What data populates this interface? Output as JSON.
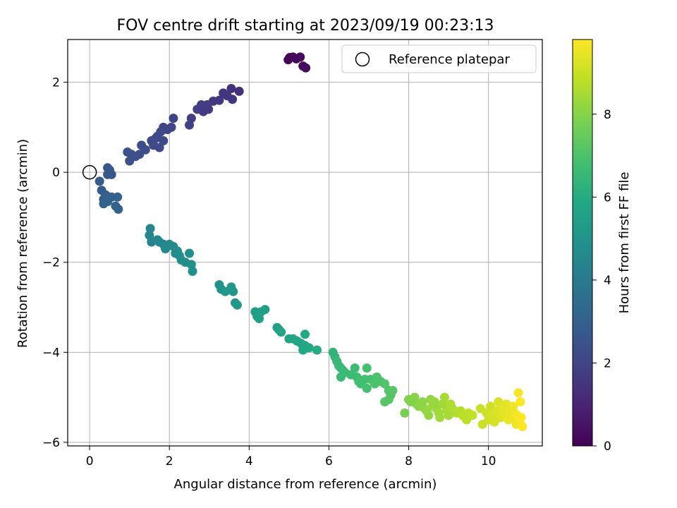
{
  "chart_data": {
    "type": "scatter",
    "title": "FOV centre drift starting at 2023/09/19 00:23:13",
    "xlabel": "Angular distance from reference (arcmin)",
    "ylabel": "Rotation from reference (arcmin)",
    "xlim": [
      -0.55,
      11.35
    ],
    "ylim": [
      -6.08,
      2.95
    ],
    "xticks": [
      0,
      2,
      4,
      6,
      8,
      10
    ],
    "xtick_labels": [
      "0",
      "2",
      "4",
      "6",
      "8",
      "10"
    ],
    "yticks": [
      2,
      0,
      -2,
      -4,
      -6
    ],
    "ytick_labels": [
      "2",
      "0",
      "−2",
      "−4",
      "−6"
    ],
    "grid": true,
    "colormap": "viridis",
    "colorbar": {
      "label": "Hours from first FF file",
      "range": [
        0,
        9.8
      ],
      "ticks": [
        0,
        2,
        4,
        6,
        8
      ],
      "tick_labels": [
        "0",
        "2",
        "4",
        "6",
        "8"
      ]
    },
    "legend": {
      "position": "upper right",
      "entries": [
        "Reference platepar"
      ]
    },
    "reference_point": {
      "x": 0,
      "y": 0
    },
    "series": [
      {
        "points": [
          {
            "x": 4.98,
            "y": 2.5,
            "c": 0.1
          },
          {
            "x": 5.02,
            "y": 2.55,
            "c": 0.1
          },
          {
            "x": 5.1,
            "y": 2.56,
            "c": 0.2
          },
          {
            "x": 5.18,
            "y": 2.52,
            "c": 0.2
          },
          {
            "x": 5.28,
            "y": 2.56,
            "c": 0.2
          },
          {
            "x": 5.35,
            "y": 2.36,
            "c": 0.3
          },
          {
            "x": 5.42,
            "y": 2.32,
            "c": 0.3
          },
          {
            "x": 3.75,
            "y": 1.8,
            "c": 1.4
          },
          {
            "x": 3.55,
            "y": 1.86,
            "c": 1.4
          },
          {
            "x": 3.58,
            "y": 1.62,
            "c": 1.5
          },
          {
            "x": 3.45,
            "y": 1.7,
            "c": 1.5
          },
          {
            "x": 3.35,
            "y": 1.76,
            "c": 1.5
          },
          {
            "x": 3.25,
            "y": 1.6,
            "c": 1.6
          },
          {
            "x": 3.1,
            "y": 1.58,
            "c": 1.6
          },
          {
            "x": 2.98,
            "y": 1.4,
            "c": 1.7
          },
          {
            "x": 2.95,
            "y": 1.5,
            "c": 1.7
          },
          {
            "x": 2.85,
            "y": 1.35,
            "c": 1.7
          },
          {
            "x": 2.8,
            "y": 1.5,
            "c": 1.8
          },
          {
            "x": 2.7,
            "y": 1.4,
            "c": 1.8
          },
          {
            "x": 2.55,
            "y": 1.2,
            "c": 1.8
          },
          {
            "x": 2.5,
            "y": 1.05,
            "c": 1.9
          },
          {
            "x": 2.1,
            "y": 1.2,
            "c": 1.9
          },
          {
            "x": 2.05,
            "y": 1.0,
            "c": 2.0
          },
          {
            "x": 1.95,
            "y": 0.95,
            "c": 2.0
          },
          {
            "x": 1.85,
            "y": 1.0,
            "c": 2.0
          },
          {
            "x": 1.78,
            "y": 0.9,
            "c": 2.1
          },
          {
            "x": 1.7,
            "y": 0.8,
            "c": 2.1
          },
          {
            "x": 1.85,
            "y": 0.7,
            "c": 2.1
          },
          {
            "x": 1.75,
            "y": 0.55,
            "c": 2.1
          },
          {
            "x": 1.65,
            "y": 0.75,
            "c": 2.2
          },
          {
            "x": 1.55,
            "y": 0.7,
            "c": 2.2
          },
          {
            "x": 1.6,
            "y": 0.6,
            "c": 2.2
          },
          {
            "x": 1.4,
            "y": 0.5,
            "c": 2.3
          },
          {
            "x": 1.3,
            "y": 0.6,
            "c": 2.3
          },
          {
            "x": 1.25,
            "y": 0.4,
            "c": 2.3
          },
          {
            "x": 1.15,
            "y": 0.35,
            "c": 2.4
          },
          {
            "x": 1.05,
            "y": 0.4,
            "c": 2.4
          },
          {
            "x": 1.0,
            "y": 0.25,
            "c": 2.4
          },
          {
            "x": 0.95,
            "y": 0.45,
            "c": 2.5
          },
          {
            "x": 0.5,
            "y": 0.05,
            "c": 2.6
          },
          {
            "x": 0.55,
            "y": -0.05,
            "c": 2.6
          },
          {
            "x": 0.45,
            "y": 0.1,
            "c": 2.7
          },
          {
            "x": 0.45,
            "y": -0.05,
            "c": 2.7
          },
          {
            "x": 0.25,
            "y": -0.2,
            "c": 2.8
          },
          {
            "x": 0.3,
            "y": -0.4,
            "c": 2.8
          },
          {
            "x": 0.4,
            "y": -0.5,
            "c": 2.9
          },
          {
            "x": 0.35,
            "y": -0.6,
            "c": 2.9
          },
          {
            "x": 0.45,
            "y": -0.65,
            "c": 3.0
          },
          {
            "x": 0.55,
            "y": -0.55,
            "c": 3.0
          },
          {
            "x": 0.7,
            "y": -0.55,
            "c": 3.0
          },
          {
            "x": 0.65,
            "y": -0.75,
            "c": 3.1
          },
          {
            "x": 0.72,
            "y": -0.82,
            "c": 3.1
          },
          {
            "x": 0.35,
            "y": -0.7,
            "c": 3.1
          },
          {
            "x": 1.52,
            "y": -1.25,
            "c": 4.4
          },
          {
            "x": 1.5,
            "y": -1.4,
            "c": 4.4
          },
          {
            "x": 1.55,
            "y": -1.55,
            "c": 4.4
          },
          {
            "x": 1.7,
            "y": -1.5,
            "c": 4.5
          },
          {
            "x": 1.75,
            "y": -1.55,
            "c": 4.5
          },
          {
            "x": 1.85,
            "y": -1.6,
            "c": 4.5
          },
          {
            "x": 1.9,
            "y": -1.7,
            "c": 4.6
          },
          {
            "x": 2.0,
            "y": -1.6,
            "c": 4.6
          },
          {
            "x": 2.1,
            "y": -1.65,
            "c": 4.6
          },
          {
            "x": 2.15,
            "y": -1.8,
            "c": 4.7
          },
          {
            "x": 2.2,
            "y": -1.75,
            "c": 4.7
          },
          {
            "x": 2.25,
            "y": -1.85,
            "c": 4.7
          },
          {
            "x": 2.3,
            "y": -1.95,
            "c": 4.8
          },
          {
            "x": 2.4,
            "y": -2.0,
            "c": 4.8
          },
          {
            "x": 2.5,
            "y": -1.8,
            "c": 4.8
          },
          {
            "x": 2.55,
            "y": -2.05,
            "c": 4.9
          },
          {
            "x": 2.58,
            "y": -2.2,
            "c": 4.9
          },
          {
            "x": 3.25,
            "y": -2.5,
            "c": 5.0
          },
          {
            "x": 3.3,
            "y": -2.6,
            "c": 5.0
          },
          {
            "x": 3.4,
            "y": -2.65,
            "c": 5.1
          },
          {
            "x": 3.55,
            "y": -2.55,
            "c": 5.1
          },
          {
            "x": 3.6,
            "y": -2.65,
            "c": 5.1
          },
          {
            "x": 3.65,
            "y": -2.9,
            "c": 5.2
          },
          {
            "x": 3.7,
            "y": -2.95,
            "c": 5.2
          },
          {
            "x": 4.15,
            "y": -3.1,
            "c": 5.4
          },
          {
            "x": 4.2,
            "y": -3.2,
            "c": 5.4
          },
          {
            "x": 4.3,
            "y": -3.1,
            "c": 5.5
          },
          {
            "x": 4.4,
            "y": -3.05,
            "c": 5.5
          },
          {
            "x": 4.25,
            "y": -3.25,
            "c": 5.5
          },
          {
            "x": 4.7,
            "y": -3.45,
            "c": 5.6
          },
          {
            "x": 4.75,
            "y": -3.5,
            "c": 5.6
          },
          {
            "x": 4.8,
            "y": -3.55,
            "c": 5.7
          },
          {
            "x": 5.0,
            "y": -3.7,
            "c": 5.7
          },
          {
            "x": 5.1,
            "y": -3.7,
            "c": 5.7
          },
          {
            "x": 5.2,
            "y": -3.75,
            "c": 5.8
          },
          {
            "x": 5.3,
            "y": -3.8,
            "c": 5.8
          },
          {
            "x": 5.4,
            "y": -3.85,
            "c": 5.8
          },
          {
            "x": 5.35,
            "y": -3.95,
            "c": 5.9
          },
          {
            "x": 5.5,
            "y": -3.9,
            "c": 5.9
          },
          {
            "x": 5.4,
            "y": -3.6,
            "c": 5.9
          },
          {
            "x": 5.7,
            "y": -3.95,
            "c": 6.0
          },
          {
            "x": 6.1,
            "y": -4.0,
            "c": 6.4
          },
          {
            "x": 6.15,
            "y": -4.1,
            "c": 6.4
          },
          {
            "x": 6.2,
            "y": -4.2,
            "c": 6.5
          },
          {
            "x": 6.25,
            "y": -4.3,
            "c": 6.5
          },
          {
            "x": 6.3,
            "y": -4.35,
            "c": 6.5
          },
          {
            "x": 6.35,
            "y": -4.4,
            "c": 6.6
          },
          {
            "x": 6.4,
            "y": -4.45,
            "c": 6.6
          },
          {
            "x": 6.3,
            "y": -4.55,
            "c": 6.6
          },
          {
            "x": 6.55,
            "y": -4.5,
            "c": 6.7
          },
          {
            "x": 6.65,
            "y": -4.35,
            "c": 6.7
          },
          {
            "x": 6.7,
            "y": -4.55,
            "c": 6.7
          },
          {
            "x": 6.75,
            "y": -4.65,
            "c": 6.8
          },
          {
            "x": 6.8,
            "y": -4.7,
            "c": 6.8
          },
          {
            "x": 6.9,
            "y": -4.6,
            "c": 6.8
          },
          {
            "x": 6.95,
            "y": -4.8,
            "c": 6.9
          },
          {
            "x": 6.95,
            "y": -4.35,
            "c": 6.9
          },
          {
            "x": 7.05,
            "y": -4.6,
            "c": 6.9
          },
          {
            "x": 7.15,
            "y": -4.7,
            "c": 7.0
          },
          {
            "x": 7.2,
            "y": -4.55,
            "c": 7.0
          },
          {
            "x": 7.3,
            "y": -4.65,
            "c": 7.0
          },
          {
            "x": 7.4,
            "y": -4.7,
            "c": 7.1
          },
          {
            "x": 7.5,
            "y": -4.85,
            "c": 7.1
          },
          {
            "x": 7.55,
            "y": -4.95,
            "c": 7.1
          },
          {
            "x": 7.6,
            "y": -4.85,
            "c": 7.2
          },
          {
            "x": 7.4,
            "y": -5.1,
            "c": 7.2
          },
          {
            "x": 7.5,
            "y": -5.05,
            "c": 7.2
          },
          {
            "x": 7.9,
            "y": -5.35,
            "c": 7.8
          },
          {
            "x": 8.0,
            "y": -5.05,
            "c": 7.9
          },
          {
            "x": 8.05,
            "y": -5.1,
            "c": 7.9
          },
          {
            "x": 8.15,
            "y": -5.0,
            "c": 8.0
          },
          {
            "x": 8.2,
            "y": -5.15,
            "c": 8.0
          },
          {
            "x": 8.25,
            "y": -5.2,
            "c": 8.1
          },
          {
            "x": 8.35,
            "y": -5.1,
            "c": 8.1
          },
          {
            "x": 8.4,
            "y": -5.25,
            "c": 8.1
          },
          {
            "x": 8.45,
            "y": -5.3,
            "c": 8.2
          },
          {
            "x": 8.5,
            "y": -5.4,
            "c": 8.2
          },
          {
            "x": 8.55,
            "y": -5.05,
            "c": 8.2
          },
          {
            "x": 8.6,
            "y": -5.2,
            "c": 8.3
          },
          {
            "x": 8.65,
            "y": -5.1,
            "c": 8.3
          },
          {
            "x": 8.7,
            "y": -5.25,
            "c": 8.3
          },
          {
            "x": 8.75,
            "y": -5.35,
            "c": 8.4
          },
          {
            "x": 8.78,
            "y": -5.45,
            "c": 8.4
          },
          {
            "x": 8.85,
            "y": -5.15,
            "c": 8.4
          },
          {
            "x": 8.9,
            "y": -5.0,
            "c": 8.5
          },
          {
            "x": 8.95,
            "y": -5.3,
            "c": 8.5
          },
          {
            "x": 9.0,
            "y": -5.4,
            "c": 8.5
          },
          {
            "x": 9.05,
            "y": -5.15,
            "c": 8.6
          },
          {
            "x": 9.1,
            "y": -5.25,
            "c": 8.6
          },
          {
            "x": 9.2,
            "y": -5.35,
            "c": 8.7
          },
          {
            "x": 9.3,
            "y": -5.3,
            "c": 8.7
          },
          {
            "x": 9.35,
            "y": -5.4,
            "c": 8.8
          },
          {
            "x": 9.45,
            "y": -5.5,
            "c": 8.8
          },
          {
            "x": 9.5,
            "y": -5.35,
            "c": 8.8
          },
          {
            "x": 9.6,
            "y": -5.4,
            "c": 8.9
          },
          {
            "x": 9.8,
            "y": -5.25,
            "c": 9.0
          },
          {
            "x": 9.85,
            "y": -5.6,
            "c": 9.0
          },
          {
            "x": 9.95,
            "y": -5.35,
            "c": 9.1
          },
          {
            "x": 10.0,
            "y": -5.5,
            "c": 9.1
          },
          {
            "x": 10.05,
            "y": -5.2,
            "c": 9.1
          },
          {
            "x": 10.1,
            "y": -5.4,
            "c": 9.2
          },
          {
            "x": 10.15,
            "y": -5.55,
            "c": 9.2
          },
          {
            "x": 10.2,
            "y": -5.3,
            "c": 9.3
          },
          {
            "x": 10.25,
            "y": -5.1,
            "c": 9.3
          },
          {
            "x": 10.3,
            "y": -5.45,
            "c": 9.3
          },
          {
            "x": 10.35,
            "y": -5.25,
            "c": 9.4
          },
          {
            "x": 10.4,
            "y": -5.4,
            "c": 9.4
          },
          {
            "x": 10.45,
            "y": -5.15,
            "c": 9.4
          },
          {
            "x": 10.5,
            "y": -5.5,
            "c": 9.5
          },
          {
            "x": 10.55,
            "y": -5.3,
            "c": 9.5
          },
          {
            "x": 10.6,
            "y": -5.45,
            "c": 9.5
          },
          {
            "x": 10.62,
            "y": -5.2,
            "c": 9.6
          },
          {
            "x": 10.65,
            "y": -5.35,
            "c": 9.6
          },
          {
            "x": 10.7,
            "y": -5.6,
            "c": 9.6
          },
          {
            "x": 10.72,
            "y": -5.4,
            "c": 9.7
          },
          {
            "x": 10.75,
            "y": -4.9,
            "c": 9.7
          },
          {
            "x": 10.78,
            "y": -5.55,
            "c": 9.7
          },
          {
            "x": 10.8,
            "y": -5.1,
            "c": 9.8
          },
          {
            "x": 10.82,
            "y": -5.45,
            "c": 9.8
          },
          {
            "x": 10.85,
            "y": -5.65,
            "c": 9.8
          }
        ]
      }
    ]
  }
}
